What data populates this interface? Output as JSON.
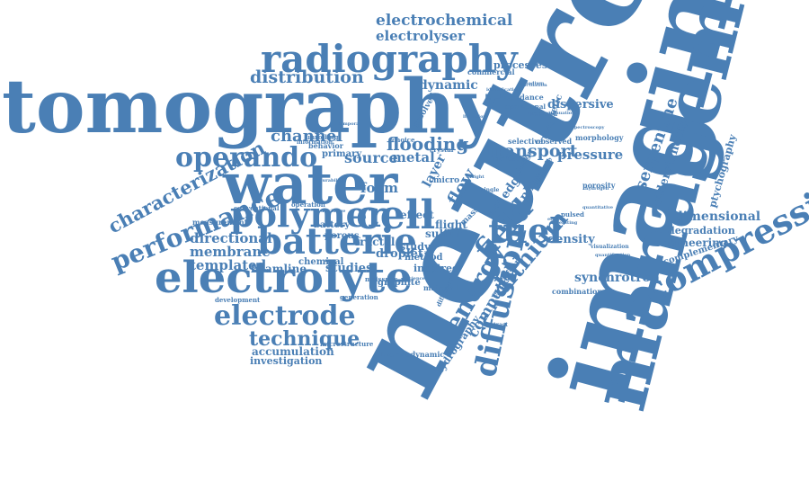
{
  "color": "#4a7fb5",
  "words": [
    {
      "id": "neutron",
      "text": "neutron"
    },
    {
      "id": "imaging",
      "text": "imaging"
    },
    {
      "id": "management",
      "text": "management"
    },
    {
      "id": "tomography",
      "text": "tomography"
    },
    {
      "id": "water",
      "text": "water"
    },
    {
      "id": "electrolyte",
      "text": "electrolyte"
    },
    {
      "id": "radiography",
      "text": "radiography"
    },
    {
      "id": "batterie",
      "text": "batterie"
    },
    {
      "id": "polymer",
      "text": "polymer"
    },
    {
      "id": "cell",
      "text": "cell"
    },
    {
      "id": "compression",
      "text": "compression"
    },
    {
      "id": "electrode",
      "text": "electrode"
    },
    {
      "id": "diffusion",
      "text": "diffusion"
    },
    {
      "id": "operando",
      "text": "operando"
    },
    {
      "id": "performance",
      "text": "performance"
    },
    {
      "id": "fuel",
      "text": "fuel"
    },
    {
      "id": "field",
      "text": "field"
    },
    {
      "id": "lithium",
      "text": "lithium"
    },
    {
      "id": "energy",
      "text": "energy"
    },
    {
      "id": "electrochemical",
      "text": "electrochemical"
    },
    {
      "id": "electrolyser",
      "text": "electrolyser"
    },
    {
      "id": "distribution",
      "text": "distribution"
    },
    {
      "id": "dynamic",
      "text": "dynamic"
    },
    {
      "id": "channel",
      "text": "channel"
    },
    {
      "id": "flooding",
      "text": "flooding"
    },
    {
      "id": "transport",
      "text": "transport"
    },
    {
      "id": "characterization",
      "text": "characterization"
    },
    {
      "id": "technique",
      "text": "technique"
    },
    {
      "id": "serpentine",
      "text": "serpentine"
    },
    {
      "id": "understanding",
      "text": "understanding"
    },
    {
      "id": "dimensional",
      "text": "dimensional"
    },
    {
      "id": "ptychography",
      "text": "ptychography"
    },
    {
      "id": "source",
      "text": "source"
    },
    {
      "id": "metal",
      "text": "metal"
    },
    {
      "id": "flow",
      "text": "flow"
    },
    {
      "id": "computed",
      "text": "computed"
    },
    {
      "id": "directional",
      "text": "directional"
    },
    {
      "id": "membrane",
      "text": "membrane"
    },
    {
      "id": "templated",
      "text": "templated"
    },
    {
      "id": "beamline",
      "text": "beamline"
    },
    {
      "id": "studies",
      "text": "studies"
    },
    {
      "id": "accumulation",
      "text": "accumulation"
    },
    {
      "id": "investigation",
      "text": "investigation"
    },
    {
      "id": "synchrotron",
      "text": "synchrotron"
    },
    {
      "id": "engineering",
      "text": "engineering"
    },
    {
      "id": "degradation",
      "text": "degradation"
    },
    {
      "id": "complementary",
      "text": "complementary"
    },
    {
      "id": "density",
      "text": "density"
    },
    {
      "id": "pressure",
      "text": "pressure"
    },
    {
      "id": "dispersive",
      "text": "dispersive"
    },
    {
      "id": "processes",
      "text": "processes"
    },
    {
      "id": "commercial",
      "text": "commercial"
    },
    {
      "id": "foam",
      "text": "foam"
    },
    {
      "id": "layer",
      "text": "layer"
    },
    {
      "id": "primary",
      "text": "primary"
    },
    {
      "id": "battery",
      "text": "battery"
    },
    {
      "id": "porous",
      "text": "porous"
    },
    {
      "id": "fractal",
      "text": "fractal"
    },
    {
      "id": "effect",
      "text": "effect"
    },
    {
      "id": "droplet",
      "text": "droplet"
    },
    {
      "id": "sulfur",
      "text": "sulfur"
    },
    {
      "id": "flight",
      "text": "flight"
    },
    {
      "id": "study",
      "text": "study"
    },
    {
      "id": "method",
      "text": "method"
    },
    {
      "id": "inspired",
      "text": "inspired"
    },
    {
      "id": "chemical",
      "text": "chemical"
    },
    {
      "id": "graphite",
      "text": "graphite"
    },
    {
      "id": "edge",
      "text": "edge"
    },
    {
      "id": "phase",
      "text": "phase"
    },
    {
      "id": "hydrography",
      "text": "hydrography"
    },
    {
      "id": "evolution",
      "text": "evolution"
    },
    {
      "id": "combination",
      "text": "combination"
    },
    {
      "id": "morphology",
      "text": "morphology"
    },
    {
      "id": "porosity",
      "text": "porosity"
    },
    {
      "id": "magnetic",
      "text": "magnetic"
    },
    {
      "id": "selective",
      "text": "selective"
    },
    {
      "id": "observed",
      "text": "observed"
    },
    {
      "id": "increase",
      "text": "increase"
    },
    {
      "id": "impedance",
      "text": "impedance"
    },
    {
      "id": "operational",
      "text": "operational"
    },
    {
      "id": "diamond",
      "text": "diamond"
    },
    {
      "id": "measurement",
      "text": "measurement"
    },
    {
      "id": "conventional",
      "text": "conventional"
    },
    {
      "id": "behavior",
      "text": "behavior"
    },
    {
      "id": "operation",
      "text": "operation"
    },
    {
      "id": "thermodynamic",
      "text": "thermodynamic"
    },
    {
      "id": "development",
      "text": "development"
    },
    {
      "id": "generation",
      "text": "generation"
    },
    {
      "id": "microstructure",
      "text": "microstructure"
    },
    {
      "id": "material",
      "text": "material"
    },
    {
      "id": "design",
      "text": "design"
    },
    {
      "id": "cathode",
      "text": "cathode"
    },
    {
      "id": "pulsed",
      "text": "pulsed"
    },
    {
      "id": "micro",
      "text": "micro"
    },
    {
      "id": "time",
      "text": "time"
    },
    {
      "id": "mass",
      "text": "mass"
    },
    {
      "id": "crystal",
      "text": "crystal"
    },
    {
      "id": "resolved",
      "text": "resolved"
    },
    {
      "id": "unrolling",
      "text": "unrolling"
    },
    {
      "id": "information",
      "text": "information"
    },
    {
      "id": "choice",
      "text": "choice"
    },
    {
      "id": "meissner",
      "text": "meissner"
    },
    {
      "id": "different",
      "text": "different"
    },
    {
      "id": "identification",
      "text": "identification"
    },
    {
      "id": "visualization",
      "text": "visualization"
    },
    {
      "id": "quantification",
      "text": "quantification"
    },
    {
      "id": "hydrogen",
      "text": "hydrogen"
    },
    {
      "id": "operating",
      "text": "operating"
    },
    {
      "id": "attenuation",
      "text": "attenuation"
    },
    {
      "id": "durability",
      "text": "durability"
    },
    {
      "id": "science",
      "text": "science"
    },
    {
      "id": "contrast",
      "text": "contrast"
    },
    {
      "id": "single",
      "text": "single"
    },
    {
      "id": "electro",
      "text": "electro"
    },
    {
      "id": "quantitative",
      "text": "quantitative"
    },
    {
      "id": "temporal",
      "text": "temporal"
    },
    {
      "id": "discharge",
      "text": "discharge"
    },
    {
      "id": "spectroscopy",
      "text": "spectroscopy"
    },
    {
      "id": "lithiation",
      "text": "lithiation"
    },
    {
      "id": "vanadium",
      "text": "vanadium"
    },
    {
      "id": "fluctuation",
      "text": "fluctuation"
    },
    {
      "id": "insight",
      "text": "insight"
    }
  ]
}
